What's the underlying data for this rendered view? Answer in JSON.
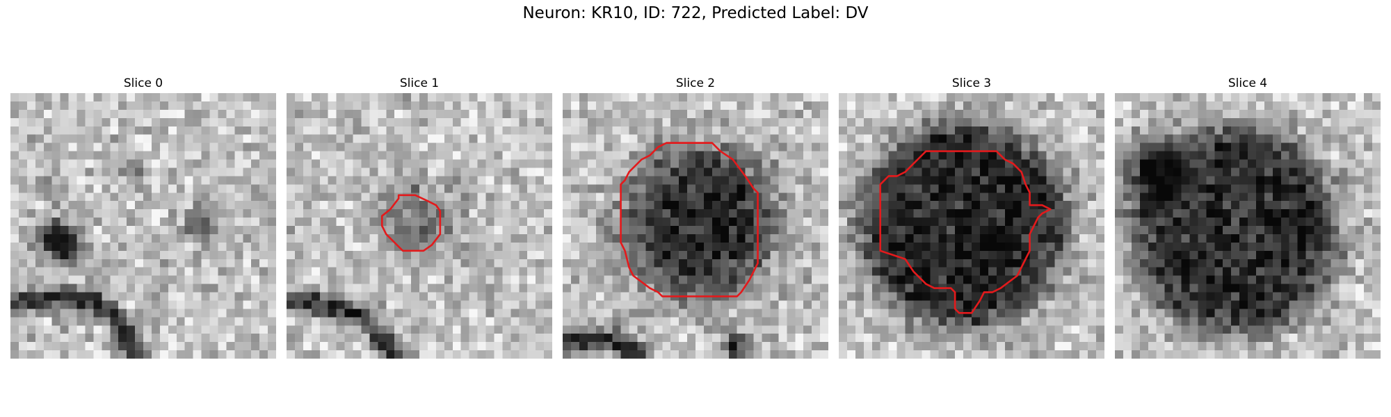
{
  "figure": {
    "title": "Neuron: KR10, ID: 722, Predicted Label: DV",
    "colors": {
      "contour": "#e31a1c"
    },
    "slices": [
      {
        "title": "Slice 0",
        "has_contour": false
      },
      {
        "title": "Slice 1",
        "has_contour": true
      },
      {
        "title": "Slice 2",
        "has_contour": true
      },
      {
        "title": "Slice 3",
        "has_contour": true
      },
      {
        "title": "Slice 4",
        "has_contour": false
      }
    ]
  }
}
